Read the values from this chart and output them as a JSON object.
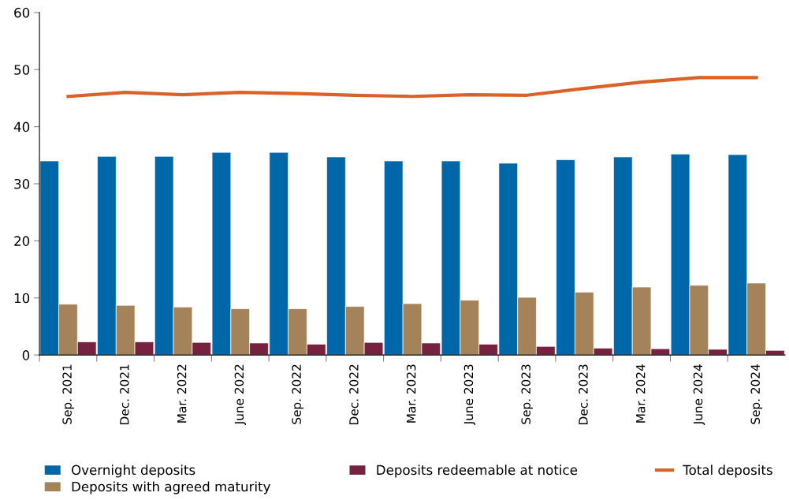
{
  "chart_data": {
    "type": "bar",
    "categories": [
      "Sep. 2021",
      "Dec. 2021",
      "Mar. 2022",
      "June 2022",
      "Sep. 2022",
      "Dec. 2022",
      "Mar. 2023",
      "June 2023",
      "Sep. 2023",
      "Dec. 2023",
      "Mar. 2024",
      "June 2024",
      "Sep. 2024"
    ],
    "series": [
      {
        "name": "Overnight deposits",
        "color": "#0067a9",
        "values": [
          34.0,
          34.8,
          34.8,
          35.5,
          35.5,
          34.7,
          34.0,
          34.0,
          33.6,
          34.2,
          34.7,
          35.2,
          35.1
        ]
      },
      {
        "name": "Deposits with agreed maturity",
        "color": "#a5835a",
        "values": [
          8.9,
          8.7,
          8.4,
          8.1,
          8.1,
          8.5,
          9.0,
          9.6,
          10.1,
          11.0,
          11.9,
          12.2,
          12.6
        ]
      },
      {
        "name": "Deposits redeemable at notice",
        "color": "#75213f",
        "values": [
          2.3,
          2.3,
          2.2,
          2.1,
          1.9,
          2.2,
          2.1,
          1.9,
          1.5,
          1.2,
          1.1,
          1.0,
          0.8
        ]
      },
      {
        "name": "Total deposits",
        "type": "line",
        "color": "#d9622b",
        "values": [
          45.3,
          46.0,
          45.6,
          46.0,
          45.8,
          45.5,
          45.3,
          45.6,
          45.5,
          46.7,
          47.8,
          48.6,
          48.6
        ]
      }
    ],
    "ylim": [
      0,
      60
    ],
    "yticks": [
      0,
      10,
      20,
      30,
      40,
      50,
      60
    ],
    "grid": false,
    "legend": "bottom"
  }
}
